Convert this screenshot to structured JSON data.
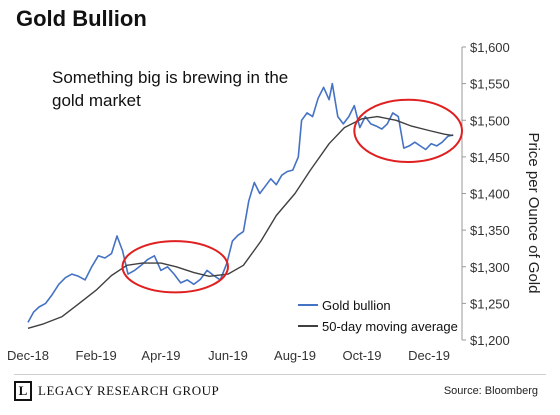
{
  "title": "Gold Bullion",
  "annotation": {
    "line1": "Something big is brewing in the",
    "line2": "gold market"
  },
  "footer": {
    "brand": "LEGACY RESEARCH GROUP",
    "logo_letter": "L",
    "logo_icon": "legacy-logo-icon",
    "source": "Source: Bloomberg"
  },
  "colors": {
    "gold_bullion": "#4472C4",
    "moving_average": "#404040",
    "circle": "#E02020",
    "axis": "#999999"
  },
  "chart_data": {
    "type": "line",
    "title": "Gold Bullion",
    "ylabel": "Price per Ounce of Gold",
    "xlabel": "",
    "ylim": [
      1200,
      1600
    ],
    "yticks": [
      1200,
      1250,
      1300,
      1350,
      1400,
      1450,
      1500,
      1550,
      1600
    ],
    "ytick_labels": [
      "$1,200",
      "$1,250",
      "$1,300",
      "$1,350",
      "$1,400",
      "$1,450",
      "$1,500",
      "$1,550",
      "$1,600"
    ],
    "xlim": [
      "2018-12-01",
      "2019-12-31"
    ],
    "xticks": [
      "2018-12-01",
      "2019-02-01",
      "2019-04-01",
      "2019-06-01",
      "2019-08-01",
      "2019-10-01",
      "2019-12-01"
    ],
    "xtick_labels": [
      "Dec-18",
      "Feb-19",
      "Apr-19",
      "Jun-19",
      "Aug-19",
      "Oct-19",
      "Dec-19"
    ],
    "legend_position": "bottom-right",
    "grid": false,
    "series": [
      {
        "name": "Gold bullion",
        "color": "#4472C4",
        "points": [
          [
            "2018-12-01",
            1224
          ],
          [
            "2018-12-06",
            1238
          ],
          [
            "2018-12-11",
            1245
          ],
          [
            "2018-12-17",
            1250
          ],
          [
            "2018-12-23",
            1262
          ],
          [
            "2018-12-29",
            1276
          ],
          [
            "2019-01-04",
            1285
          ],
          [
            "2019-01-10",
            1290
          ],
          [
            "2019-01-16",
            1287
          ],
          [
            "2019-01-22",
            1282
          ],
          [
            "2019-01-28",
            1300
          ],
          [
            "2019-02-03",
            1315
          ],
          [
            "2019-02-09",
            1312
          ],
          [
            "2019-02-15",
            1318
          ],
          [
            "2019-02-20",
            1342
          ],
          [
            "2019-02-25",
            1322
          ],
          [
            "2019-03-02",
            1290
          ],
          [
            "2019-03-08",
            1295
          ],
          [
            "2019-03-14",
            1302
          ],
          [
            "2019-03-20",
            1310
          ],
          [
            "2019-03-26",
            1315
          ],
          [
            "2019-04-01",
            1295
          ],
          [
            "2019-04-07",
            1300
          ],
          [
            "2019-04-13",
            1290
          ],
          [
            "2019-04-19",
            1278
          ],
          [
            "2019-04-25",
            1282
          ],
          [
            "2019-05-01",
            1276
          ],
          [
            "2019-05-07",
            1283
          ],
          [
            "2019-05-13",
            1295
          ],
          [
            "2019-05-19",
            1288
          ],
          [
            "2019-05-25",
            1282
          ],
          [
            "2019-05-31",
            1305
          ],
          [
            "2019-06-05",
            1335
          ],
          [
            "2019-06-10",
            1343
          ],
          [
            "2019-06-15",
            1348
          ],
          [
            "2019-06-20",
            1390
          ],
          [
            "2019-06-25",
            1415
          ],
          [
            "2019-06-30",
            1400
          ],
          [
            "2019-07-05",
            1410
          ],
          [
            "2019-07-10",
            1420
          ],
          [
            "2019-07-15",
            1412
          ],
          [
            "2019-07-20",
            1425
          ],
          [
            "2019-07-25",
            1430
          ],
          [
            "2019-07-30",
            1432
          ],
          [
            "2019-08-04",
            1450
          ],
          [
            "2019-08-07",
            1500
          ],
          [
            "2019-08-12",
            1510
          ],
          [
            "2019-08-17",
            1505
          ],
          [
            "2019-08-22",
            1530
          ],
          [
            "2019-08-27",
            1545
          ],
          [
            "2019-09-01",
            1528
          ],
          [
            "2019-09-04",
            1550
          ],
          [
            "2019-09-09",
            1505
          ],
          [
            "2019-09-14",
            1495
          ],
          [
            "2019-09-19",
            1505
          ],
          [
            "2019-09-24",
            1520
          ],
          [
            "2019-09-29",
            1490
          ],
          [
            "2019-10-04",
            1505
          ],
          [
            "2019-10-09",
            1495
          ],
          [
            "2019-10-14",
            1492
          ],
          [
            "2019-10-19",
            1488
          ],
          [
            "2019-10-24",
            1495
          ],
          [
            "2019-10-29",
            1510
          ],
          [
            "2019-11-03",
            1505
          ],
          [
            "2019-11-08",
            1462
          ],
          [
            "2019-11-13",
            1465
          ],
          [
            "2019-11-18",
            1470
          ],
          [
            "2019-11-23",
            1465
          ],
          [
            "2019-11-28",
            1460
          ],
          [
            "2019-12-03",
            1468
          ],
          [
            "2019-12-08",
            1465
          ],
          [
            "2019-12-13",
            1470
          ],
          [
            "2019-12-18",
            1478
          ],
          [
            "2019-12-23",
            1480
          ]
        ]
      },
      {
        "name": "50-day moving average",
        "color": "#404040",
        "points": [
          [
            "2018-12-01",
            1216
          ],
          [
            "2018-12-15",
            1222
          ],
          [
            "2019-01-01",
            1232
          ],
          [
            "2019-01-15",
            1248
          ],
          [
            "2019-02-01",
            1268
          ],
          [
            "2019-02-15",
            1288
          ],
          [
            "2019-03-01",
            1302
          ],
          [
            "2019-03-15",
            1305
          ],
          [
            "2019-04-01",
            1305
          ],
          [
            "2019-04-15",
            1300
          ],
          [
            "2019-05-01",
            1292
          ],
          [
            "2019-05-15",
            1287
          ],
          [
            "2019-06-01",
            1290
          ],
          [
            "2019-06-15",
            1302
          ],
          [
            "2019-07-01",
            1335
          ],
          [
            "2019-07-15",
            1370
          ],
          [
            "2019-08-01",
            1400
          ],
          [
            "2019-08-15",
            1432
          ],
          [
            "2019-09-01",
            1468
          ],
          [
            "2019-09-15",
            1490
          ],
          [
            "2019-10-01",
            1502
          ],
          [
            "2019-10-15",
            1505
          ],
          [
            "2019-11-01",
            1500
          ],
          [
            "2019-11-15",
            1492
          ],
          [
            "2019-12-01",
            1486
          ],
          [
            "2019-12-15",
            1481
          ],
          [
            "2019-12-23",
            1479
          ]
        ]
      }
    ],
    "highlights": [
      {
        "x_start": "2019-02-25",
        "x_end": "2019-06-01",
        "y_low": 1265,
        "y_high": 1335
      },
      {
        "x_start": "2019-09-24",
        "x_end": "2019-12-31",
        "y_low": 1443,
        "y_high": 1528
      }
    ]
  }
}
